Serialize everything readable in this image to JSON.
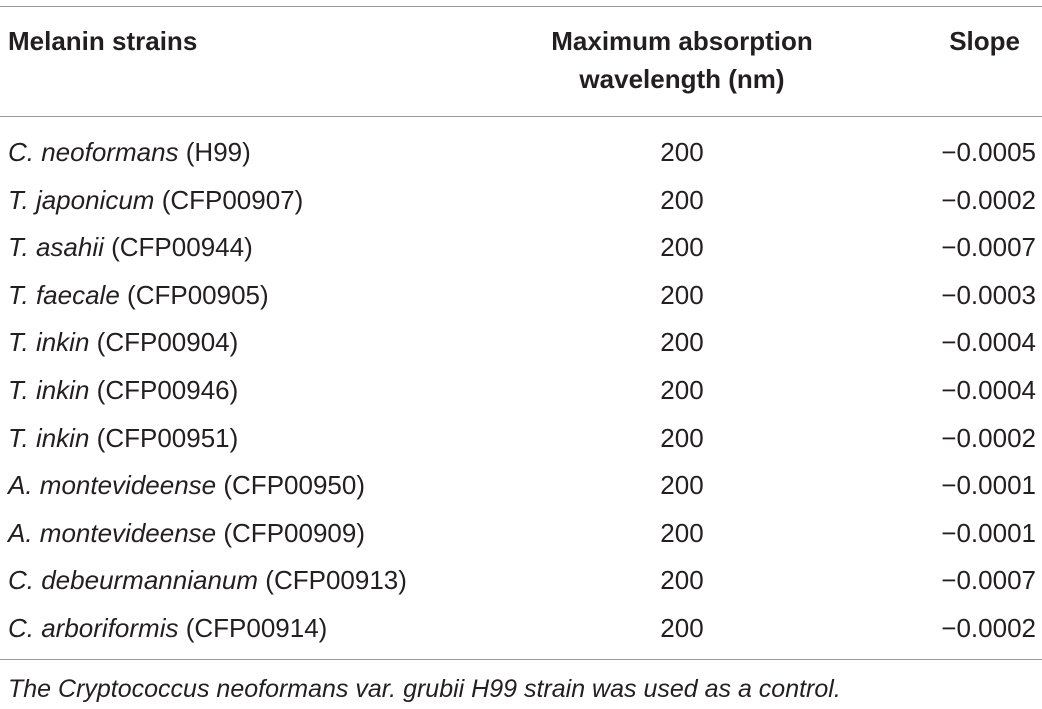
{
  "table": {
    "headers": {
      "strain": "Melanin strains",
      "wavelength_line1": "Maximum absorption",
      "wavelength_line2": "wavelength (nm)",
      "slope": "Slope"
    },
    "rows": [
      {
        "species": "C. neoformans",
        "code": "(H99)",
        "wavelength": "200",
        "slope": "−0.0005"
      },
      {
        "species": "T. japonicum",
        "code": "(CFP00907)",
        "wavelength": "200",
        "slope": "−0.0002"
      },
      {
        "species": "T. asahii",
        "code": "(CFP00944)",
        "wavelength": "200",
        "slope": "−0.0007"
      },
      {
        "species": "T. faecale",
        "code": "(CFP00905)",
        "wavelength": "200",
        "slope": "−0.0003"
      },
      {
        "species": "T. inkin",
        "code": "(CFP00904)",
        "wavelength": "200",
        "slope": "−0.0004"
      },
      {
        "species": "T. inkin",
        "code": "(CFP00946)",
        "wavelength": "200",
        "slope": "−0.0004"
      },
      {
        "species": "T. inkin",
        "code": "(CFP00951)",
        "wavelength": "200",
        "slope": "−0.0002"
      },
      {
        "species": "A. montevideense",
        "code": "(CFP00950)",
        "wavelength": "200",
        "slope": "−0.0001"
      },
      {
        "species": "A. montevideense",
        "code": "(CFP00909)",
        "wavelength": "200",
        "slope": "−0.0001"
      },
      {
        "species": "C. debeurmannianum",
        "code": "(CFP00913)",
        "wavelength": "200",
        "slope": "−0.0007"
      },
      {
        "species": "C. arboriformis",
        "code": "(CFP00914)",
        "wavelength": "200",
        "slope": "−0.0002"
      }
    ],
    "footnote": "The Cryptococcus neoformans var. grubii H99 strain was used as a control."
  }
}
